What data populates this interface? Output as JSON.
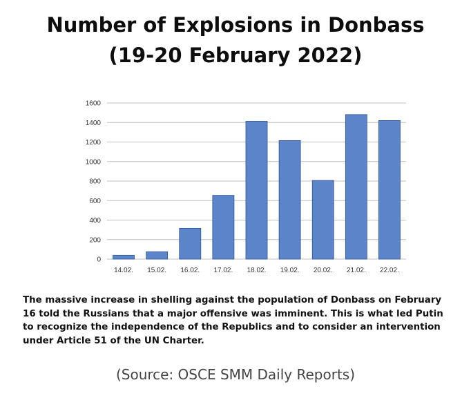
{
  "title_line1": "Number of Explosions in Donbass",
  "title_line2": "(19-20 February 2022)",
  "caption": "The massive increase in shelling against the population of Donbass on February 16 told the Russians that a major offensive was imminent. This is what led Putin to recognize the independence of the Republics and to consider an intervention under Article 51 of the UN Charter.",
  "source": "(Source: OSCE SMM Daily Reports)",
  "colors": {
    "bar": "#5b84c9",
    "bar_edge": "#2f5597",
    "grid": "#bfbfbf"
  },
  "chart_data": {
    "type": "bar",
    "categories": [
      "14.02.",
      "15.02.",
      "16.02.",
      "17.02.",
      "18.02.",
      "19.02.",
      "20.02.",
      "21.02.",
      "22.02."
    ],
    "values": [
      40,
      76,
      316,
      654,
      1413,
      1215,
      806,
      1481,
      1420
    ],
    "yticks": [
      "0",
      "200",
      "400",
      "600",
      "800",
      "1000",
      "1200",
      "1400",
      "1600"
    ],
    "ylim": [
      0,
      1600
    ],
    "grid": true
  }
}
